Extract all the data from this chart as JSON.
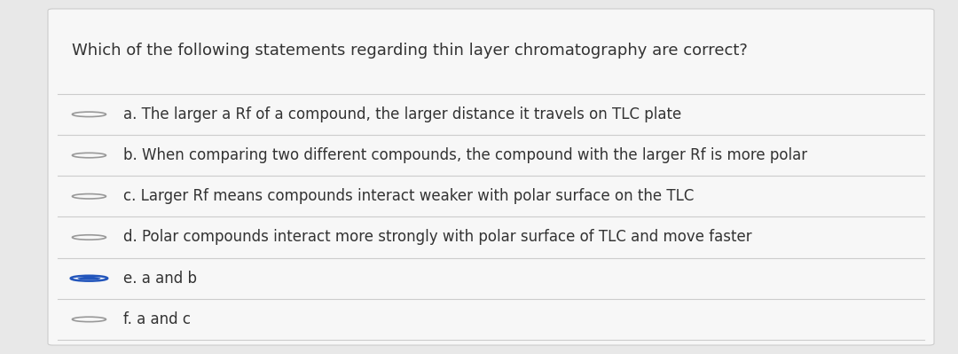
{
  "title": "Which of the following statements regarding thin layer chromatography are correct?",
  "title_fontsize": 13.0,
  "bg_color": "#e8e8e8",
  "card_color": "#f7f7f7",
  "text_color": "#333333",
  "line_color": "#cccccc",
  "options": [
    {
      "label": "a",
      "text": "The larger a Rf of a compound, the larger distance it travels on TLC plate",
      "selected": false
    },
    {
      "label": "b",
      "text": "When comparing two different compounds, the compound with the larger Rf is more polar",
      "selected": false
    },
    {
      "label": "c",
      "text": "Larger Rf means compounds interact weaker with polar surface on the TLC",
      "selected": false
    },
    {
      "label": "d",
      "text": "Polar compounds interact more strongly with polar surface of TLC and move faster",
      "selected": false
    },
    {
      "label": "e",
      "text": "a and b",
      "selected": true
    },
    {
      "label": "f",
      "text": "a and c",
      "selected": false
    }
  ],
  "circle_edge_color_unselected": "#999999",
  "circle_fill_color_unselected": "#f7f7f7",
  "circle_edge_color_selected": "#2255bb",
  "circle_fill_color_selected": "#2255bb",
  "option_fontsize": 12.0
}
